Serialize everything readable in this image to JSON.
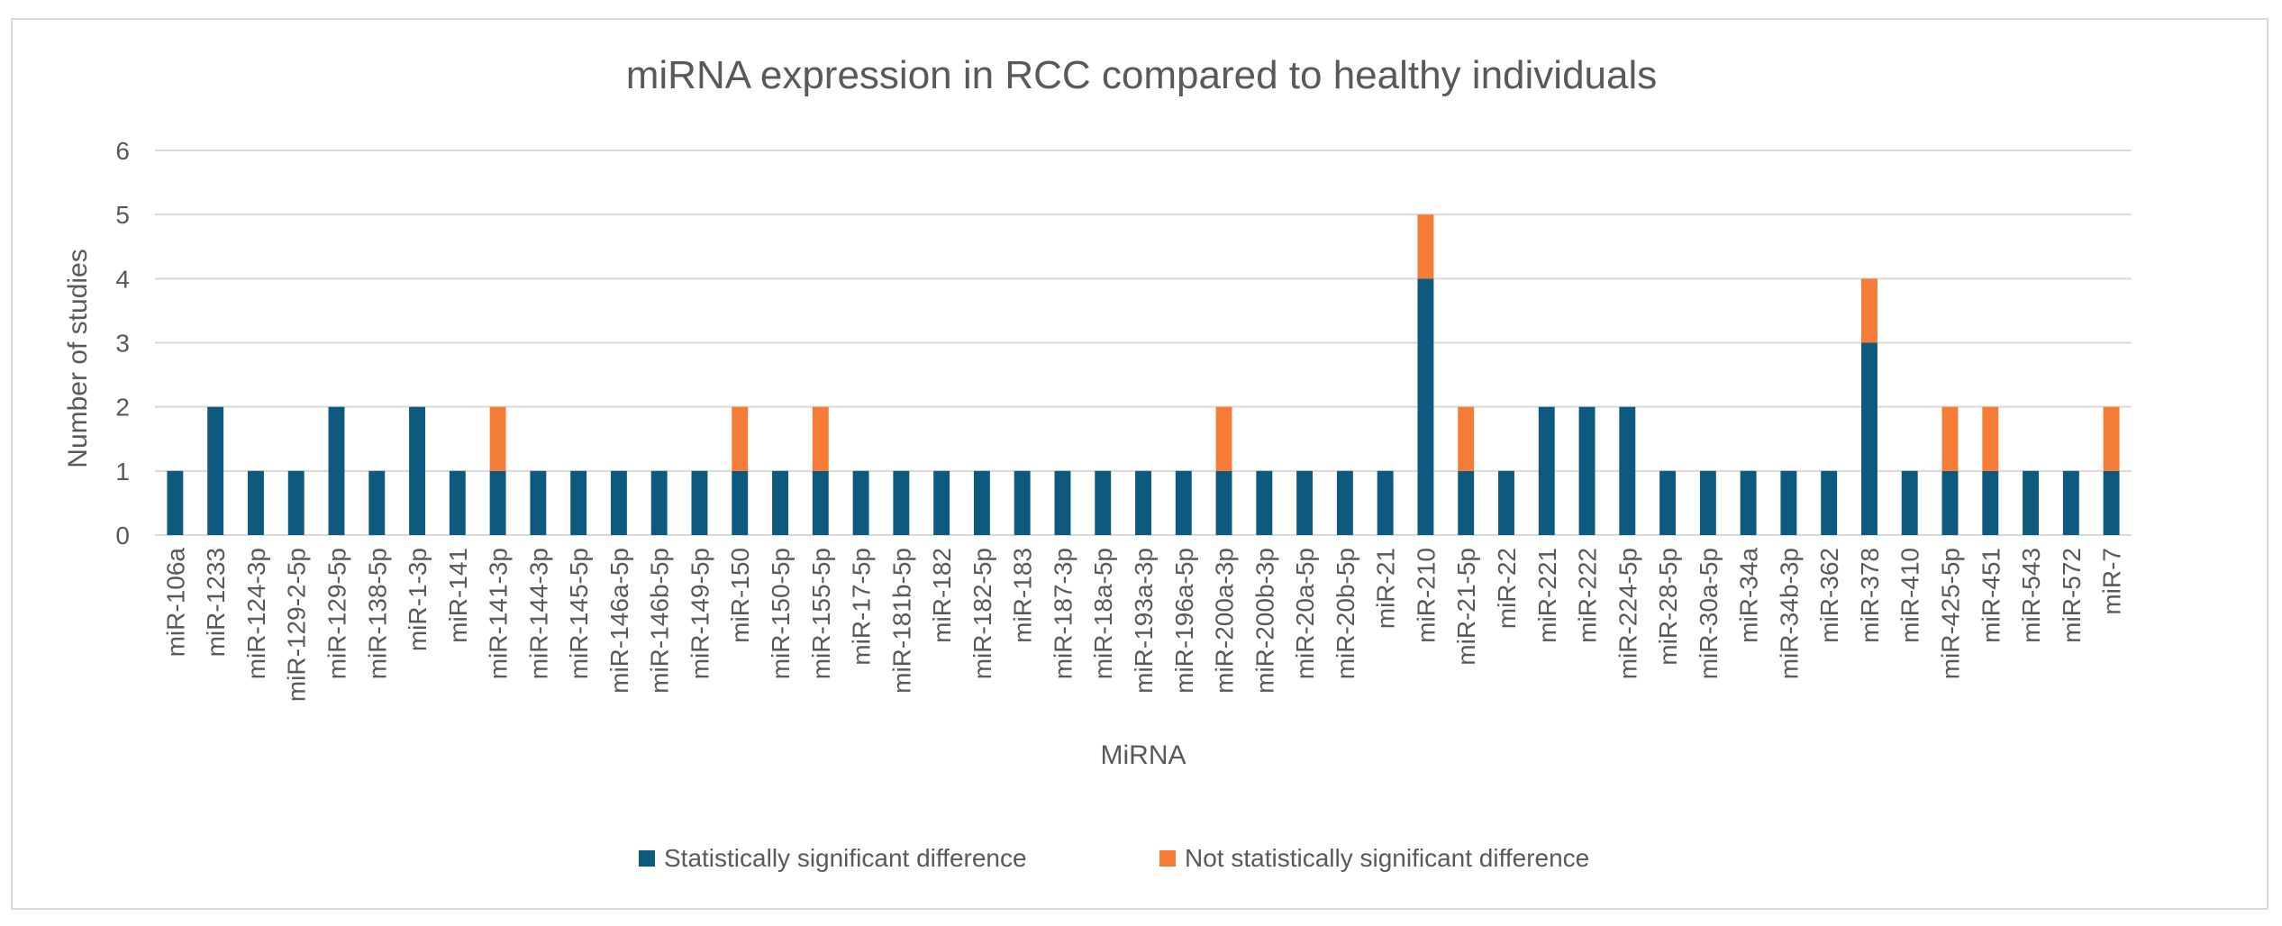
{
  "chart_data": {
    "type": "bar",
    "stacked": true,
    "title": "miRNA expression in RCC compared to healthy individuals",
    "xlabel": "MiRNA",
    "ylabel": "Number of studies",
    "ylim": [
      0,
      6
    ],
    "yticks": [
      0,
      1,
      2,
      3,
      4,
      5,
      6
    ],
    "grid": true,
    "legend_position": "bottom",
    "categories": [
      "miR-106a",
      "miR-1233",
      "miR-124-3p",
      "miR-129-2-5p",
      "miR-129-5p",
      "miR-138-5p",
      "miR-1-3p",
      "miR-141",
      "miR-141-3p",
      "miR-144-3p",
      "miR-145-5p",
      "miR-146a-5p",
      "miR-146b-5p",
      "miR-149-5p",
      "miR-150",
      "miR-150-5p",
      "miR-155-5p",
      "miR-17-5p",
      "miR-181b-5p",
      "miR-182",
      "miR-182-5p",
      "miR-183",
      "miR-187-3p",
      "miR-18a-5p",
      "miR-193a-3p",
      "miR-196a-5p",
      "miR-200a-3p",
      "miR-200b-3p",
      "miR-20a-5p",
      "miR-20b-5p",
      "miR-21",
      "miR-210",
      "miR-21-5p",
      "miR-22",
      "miR-221",
      "miR-222",
      "miR-224-5p",
      "miR-28-5p",
      "miR-30a-5p",
      "miR-34a",
      "miR-34b-3p",
      "miR-362",
      "miR-378",
      "miR-410",
      "miR-425-5p",
      "miR-451",
      "miR-543",
      "miR-572",
      "miR-7"
    ],
    "series": [
      {
        "name": "Statistically significant difference",
        "color": "#0e5a7e",
        "values": [
          1,
          2,
          1,
          1,
          2,
          1,
          2,
          1,
          1,
          1,
          1,
          1,
          1,
          1,
          1,
          1,
          1,
          1,
          1,
          1,
          1,
          1,
          1,
          1,
          1,
          1,
          1,
          1,
          1,
          1,
          1,
          4,
          1,
          1,
          2,
          2,
          2,
          1,
          1,
          1,
          1,
          1,
          3,
          1,
          1,
          1,
          1,
          1,
          1
        ]
      },
      {
        "name": "Not statistically significant difference",
        "color": "#f47c36",
        "values": [
          0,
          0,
          0,
          0,
          0,
          0,
          0,
          0,
          1,
          0,
          0,
          0,
          0,
          0,
          1,
          0,
          1,
          0,
          0,
          0,
          0,
          0,
          0,
          0,
          0,
          0,
          1,
          0,
          0,
          0,
          0,
          1,
          1,
          0,
          0,
          0,
          0,
          0,
          0,
          0,
          0,
          0,
          1,
          0,
          1,
          1,
          0,
          0,
          1
        ]
      }
    ]
  }
}
